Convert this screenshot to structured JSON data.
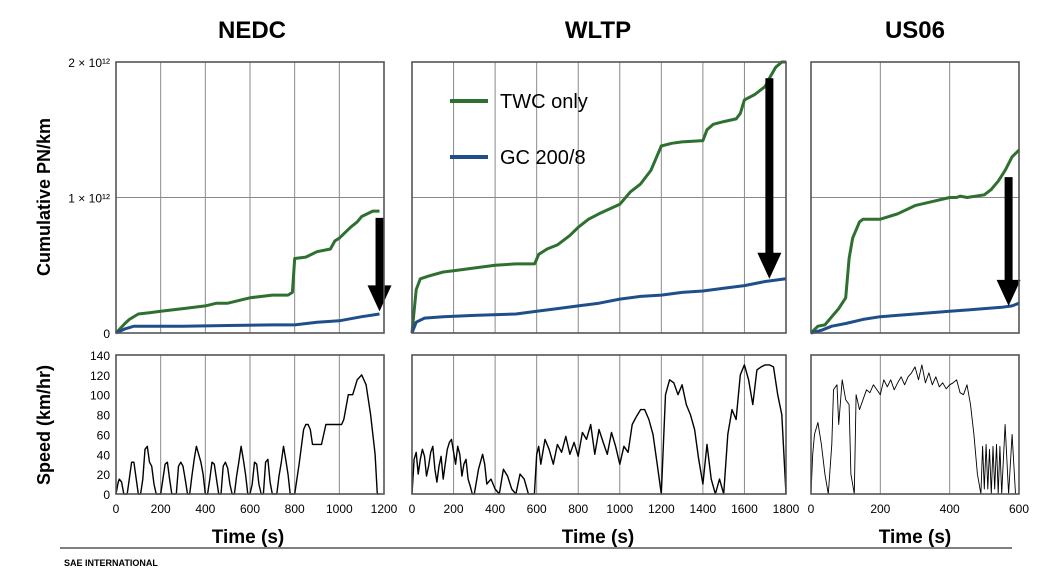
{
  "chart_data": {
    "type": "line",
    "panels": [
      {
        "title": "NEDC",
        "top": {
          "xlim": [
            0,
            1200
          ],
          "ylim": [
            0,
            2000000000000.0
          ],
          "series": [
            {
              "name": "TWC only",
              "color": "#2e7030",
              "x": [
                0,
                40,
                60,
                100,
                150,
                200,
                300,
                400,
                450,
                500,
                600,
                700,
                770,
                790,
                800,
                850,
                900,
                960,
                980,
                1000,
                1050,
                1080,
                1100,
                1150,
                1180
              ],
              "y": [
                0,
                70000000000.0,
                100000000000.0,
                140000000000.0,
                150000000000.0,
                160000000000.0,
                180000000000.0,
                200000000000.0,
                220000000000.0,
                220000000000.0,
                260000000000.0,
                280000000000.0,
                280000000000.0,
                300000000000.0,
                550000000000.0,
                560000000000.0,
                600000000000.0,
                620000000000.0,
                680000000000.0,
                700000000000.0,
                780000000000.0,
                820000000000.0,
                860000000000.0,
                900000000000.0,
                900000000000.0
              ]
            },
            {
              "name": "GC 200/8",
              "color": "#1f4f8a",
              "x": [
                0,
                40,
                80,
                150,
                300,
                500,
                700,
                800,
                900,
                1000,
                1100,
                1180
              ],
              "y": [
                0,
                30000000000.0,
                50000000000.0,
                50000000000.0,
                50000000000.0,
                55000000000.0,
                60000000000.0,
                60000000000.0,
                80000000000.0,
                90000000000.0,
                120000000000.0,
                140000000000.0
              ]
            }
          ],
          "arrow": {
            "x": 1180,
            "y_from": 850000000000.0,
            "y_to": 160000000000.0
          }
        },
        "bottom": {
          "xlim": [
            0,
            1200
          ],
          "ylim": [
            0,
            140
          ],
          "x": [
            0,
            10,
            15,
            25,
            35,
            45,
            50,
            70,
            80,
            100,
            110,
            120,
            130,
            140,
            150,
            160,
            170,
            180,
            200,
            210,
            220,
            230,
            240,
            250,
            270,
            280,
            290,
            300,
            310,
            320,
            330,
            340,
            350,
            360,
            380,
            390,
            400,
            410,
            420,
            430,
            440,
            450,
            460,
            470,
            480,
            490,
            500,
            510,
            520,
            530,
            540,
            550,
            560,
            570,
            580,
            590,
            600,
            610,
            620,
            630,
            640,
            650,
            660,
            670,
            680,
            690,
            700,
            710,
            720,
            730,
            740,
            750,
            760,
            770,
            780,
            790,
            800,
            820,
            840,
            850,
            860,
            870,
            880,
            890,
            900,
            920,
            940,
            960,
            980,
            1000,
            1010,
            1020,
            1040,
            1060,
            1080,
            1100,
            1120,
            1140,
            1160,
            1170,
            1180
          ],
          "y": [
            0,
            12,
            15,
            12,
            0,
            0,
            0,
            32,
            32,
            0,
            0,
            15,
            45,
            48,
            32,
            28,
            10,
            0,
            0,
            15,
            30,
            32,
            15,
            0,
            0,
            28,
            32,
            28,
            15,
            0,
            0,
            18,
            35,
            48,
            32,
            20,
            0,
            0,
            15,
            32,
            30,
            15,
            0,
            0,
            28,
            32,
            26,
            10,
            0,
            0,
            18,
            32,
            48,
            35,
            20,
            0,
            0,
            10,
            32,
            30,
            10,
            0,
            0,
            32,
            35,
            12,
            0,
            0,
            0,
            18,
            32,
            48,
            35,
            20,
            0,
            0,
            0,
            30,
            65,
            70,
            70,
            65,
            50,
            50,
            50,
            50,
            70,
            70,
            70,
            70,
            70,
            75,
            100,
            100,
            115,
            120,
            110,
            80,
            40,
            0,
            0
          ]
        }
      },
      {
        "title": "WLTP",
        "top": {
          "xlim": [
            0,
            1800
          ],
          "ylim": [
            0,
            2000000000000.0
          ],
          "series": [
            {
              "name": "TWC only",
              "color": "#2e7030",
              "x": [
                0,
                20,
                40,
                80,
                150,
                200,
                300,
                400,
                500,
                590,
                610,
                650,
                700,
                760,
                800,
                850,
                900,
                1000,
                1050,
                1100,
                1150,
                1200,
                1250,
                1300,
                1400,
                1420,
                1450,
                1500,
                1560,
                1580,
                1600,
                1650,
                1700,
                1720,
                1750,
                1780,
                1800
              ],
              "y": [
                0,
                320000000000.0,
                400000000000.0,
                420000000000.0,
                450000000000.0,
                460000000000.0,
                480000000000.0,
                500000000000.0,
                510000000000.0,
                510000000000.0,
                580000000000.0,
                620000000000.0,
                650000000000.0,
                720000000000.0,
                780000000000.0,
                840000000000.0,
                880000000000.0,
                950000000000.0,
                1040000000000.0,
                1100000000000.0,
                1200000000000.0,
                1380000000000.0,
                1400000000000.0,
                1410000000000.0,
                1420000000000.0,
                1500000000000.0,
                1540000000000.0,
                1560000000000.0,
                1580000000000.0,
                1620000000000.0,
                1720000000000.0,
                1760000000000.0,
                1820000000000.0,
                1880000000000.0,
                1960000000000.0,
                2000000000000.0,
                2000000000000.0
              ]
            },
            {
              "name": "GC 200/8",
              "color": "#1f4f8a",
              "x": [
                0,
                20,
                60,
                150,
                300,
                500,
                600,
                700,
                800,
                900,
                1000,
                1100,
                1200,
                1300,
                1400,
                1500,
                1600,
                1700,
                1800
              ],
              "y": [
                0,
                80000000000.0,
                110000000000.0,
                120000000000.0,
                130000000000.0,
                140000000000.0,
                160000000000.0,
                180000000000.0,
                200000000000.0,
                220000000000.0,
                250000000000.0,
                270000000000.0,
                280000000000.0,
                300000000000.0,
                310000000000.0,
                330000000000.0,
                350000000000.0,
                380000000000.0,
                400000000000.0
              ]
            }
          ],
          "arrow": {
            "x": 1720,
            "y_from": 1880000000000.0,
            "y_to": 400000000000.0
          }
        },
        "bottom": {
          "xlim": [
            0,
            1800
          ],
          "ylim": [
            0,
            140
          ],
          "x": [
            0,
            10,
            20,
            30,
            40,
            50,
            60,
            70,
            80,
            90,
            100,
            110,
            120,
            130,
            140,
            150,
            160,
            170,
            180,
            190,
            200,
            210,
            220,
            230,
            240,
            250,
            260,
            270,
            280,
            290,
            300,
            320,
            340,
            350,
            360,
            380,
            400,
            420,
            440,
            460,
            480,
            500,
            520,
            540,
            560,
            580,
            589,
            600,
            610,
            620,
            640,
            660,
            680,
            700,
            720,
            740,
            760,
            780,
            800,
            820,
            840,
            860,
            880,
            900,
            920,
            940,
            960,
            980,
            1000,
            1020,
            1040,
            1060,
            1080,
            1100,
            1120,
            1140,
            1160,
            1180,
            1200,
            1220,
            1240,
            1260,
            1280,
            1300,
            1320,
            1340,
            1360,
            1380,
            1400,
            1420,
            1440,
            1460,
            1480,
            1500,
            1520,
            1540,
            1560,
            1580,
            1600,
            1620,
            1640,
            1660,
            1680,
            1700,
            1720,
            1740,
            1760,
            1780,
            1800
          ],
          "y": [
            0,
            35,
            42,
            20,
            35,
            45,
            38,
            18,
            28,
            42,
            48,
            25,
            12,
            28,
            38,
            15,
            30,
            45,
            52,
            55,
            42,
            30,
            48,
            40,
            18,
            30,
            35,
            15,
            8,
            0,
            0,
            25,
            40,
            30,
            10,
            15,
            5,
            0,
            25,
            18,
            5,
            0,
            20,
            15,
            0,
            0,
            0,
            40,
            48,
            30,
            55,
            45,
            30,
            50,
            42,
            58,
            40,
            52,
            38,
            62,
            55,
            70,
            40,
            65,
            52,
            40,
            62,
            48,
            30,
            48,
            42,
            70,
            78,
            85,
            85,
            75,
            60,
            30,
            0,
            100,
            115,
            112,
            100,
            110,
            90,
            80,
            65,
            35,
            10,
            50,
            15,
            0,
            15,
            0,
            60,
            85,
            75,
            120,
            130,
            115,
            90,
            125,
            128,
            130,
            130,
            128,
            100,
            80,
            0
          ]
        }
      },
      {
        "title": "US06",
        "top": {
          "xlim": [
            0,
            600
          ],
          "ylim": [
            0,
            2000000000000.0
          ],
          "series": [
            {
              "name": "TWC only",
              "color": "#2e7030",
              "x": [
                0,
                20,
                40,
                60,
                80,
                100,
                110,
                120,
                140,
                150,
                200,
                250,
                300,
                350,
                400,
                420,
                430,
                450,
                500,
                520,
                540,
                560,
                580,
                600
              ],
              "y": [
                0,
                50000000000.0,
                60000000000.0,
                120000000000.0,
                180000000000.0,
                260000000000.0,
                550000000000.0,
                700000000000.0,
                820000000000.0,
                840000000000.0,
                840000000000.0,
                880000000000.0,
                940000000000.0,
                970000000000.0,
                1000000000000.0,
                1000000000000.0,
                1010000000000.0,
                1000000000000.0,
                1020000000000.0,
                1060000000000.0,
                1120000000000.0,
                1200000000000.0,
                1300000000000.0,
                1350000000000.0
              ]
            },
            {
              "name": "GC 200/8",
              "color": "#1f4f8a",
              "x": [
                0,
                30,
                60,
                100,
                150,
                200,
                300,
                400,
                450,
                500,
                550,
                580,
                600
              ],
              "y": [
                0,
                20000000000.0,
                50000000000.0,
                70000000000.0,
                100000000000.0,
                120000000000.0,
                140000000000.0,
                160000000000.0,
                170000000000.0,
                180000000000.0,
                190000000000.0,
                200000000000.0,
                220000000000.0
              ]
            }
          ],
          "arrow": {
            "x": 570,
            "y_from": 1150000000000.0,
            "y_to": 200000000000.0
          }
        },
        "bottom": {
          "xlim": [
            0,
            600
          ],
          "ylim": [
            0,
            140
          ],
          "x": [
            0,
            5,
            10,
            20,
            30,
            40,
            50,
            60,
            65,
            75,
            80,
            90,
            100,
            110,
            115,
            125,
            130,
            140,
            150,
            160,
            170,
            180,
            190,
            200,
            210,
            220,
            230,
            240,
            250,
            260,
            270,
            280,
            290,
            300,
            310,
            320,
            330,
            340,
            350,
            360,
            370,
            380,
            390,
            400,
            410,
            420,
            430,
            440,
            450,
            460,
            470,
            480,
            490,
            495,
            500,
            505,
            510,
            515,
            520,
            525,
            530,
            535,
            540,
            545,
            550,
            560,
            570,
            580,
            590,
            600
          ],
          "y": [
            0,
            40,
            60,
            72,
            50,
            20,
            0,
            50,
            105,
            110,
            70,
            115,
            95,
            90,
            20,
            0,
            100,
            85,
            95,
            105,
            102,
            110,
            105,
            100,
            115,
            108,
            115,
            105,
            112,
            118,
            110,
            118,
            122,
            128,
            115,
            130,
            112,
            122,
            110,
            118,
            108,
            112,
            106,
            110,
            112,
            115,
            102,
            100,
            110,
            90,
            60,
            20,
            0,
            48,
            5,
            50,
            5,
            45,
            0,
            48,
            5,
            50,
            0,
            48,
            0,
            70,
            0,
            60,
            0,
            0
          ]
        }
      }
    ],
    "legend": {
      "entries": [
        "TWC only",
        "GC 200/8"
      ],
      "placement": "upper-left of WLTP panel"
    },
    "ylabel_top": "Cumulative PN/km",
    "ylabel_bottom": "Speed (km/hr)",
    "xlabel": "Time (s)",
    "yticks_top": [
      "0",
      "1 × 10¹²",
      "2 × 10¹²"
    ],
    "yticks_bottom": [
      "0",
      "20",
      "40",
      "60",
      "80",
      "100",
      "120",
      "140"
    ],
    "xticks": [
      [
        "0",
        "200",
        "400",
        "600",
        "800",
        "1000",
        "1200"
      ],
      [
        "0",
        "200",
        "400",
        "600",
        "800",
        "1000",
        "1200",
        "1400",
        "1600",
        "1800"
      ],
      [
        "0",
        "200",
        "400",
        "600"
      ]
    ]
  },
  "footer": "SAE INTERNATIONAL"
}
